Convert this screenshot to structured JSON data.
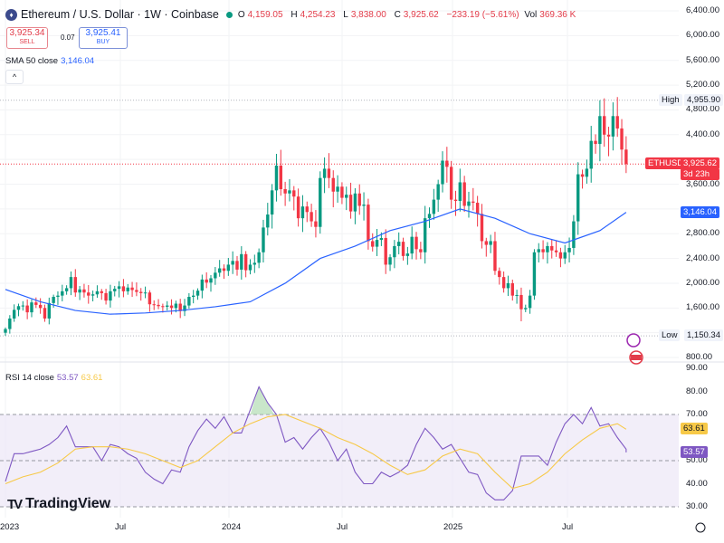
{
  "header": {
    "symbol_icon": "ethereum-icon",
    "title": "Ethereum / U.S. Dollar · 1W · Coinbase",
    "market_status": "open",
    "open_label": "O",
    "open": "4,159.05",
    "high_label": "H",
    "high": "4,254.23",
    "low_label": "L",
    "low": "3,838.00",
    "close_label": "C",
    "close": "3,925.62",
    "change": "−233.19 (−5.61%)",
    "vol_label": "Vol",
    "vol": "369.36 K"
  },
  "trade": {
    "sell_price": "3,925.34",
    "sell_label": "SELL",
    "spread": "0.07",
    "buy_price": "3,925.41",
    "buy_label": "BUY"
  },
  "sma": {
    "label": "SMA 50 close",
    "value": "3,146.04"
  },
  "rsi": {
    "label": "RSI 14 close",
    "value": "53.57",
    "ma_value": "63.61"
  },
  "price_axis": {
    "ticks": [
      "6,400.00",
      "6,000.00",
      "5,600.00",
      "5,200.00",
      "4,800.00",
      "4,400.00",
      "3,600.00",
      "2,800.00",
      "2,400.00",
      "2,000.00",
      "1,600.00",
      "800.00"
    ],
    "high_label": "High",
    "high_value": "4,955.90",
    "low_label": "Low",
    "low_value": "1,150.34",
    "symbol_tag": "ETHUSD",
    "last_price": "3,925.62",
    "countdown": "3d 23h",
    "sma_tag": "3,146.04"
  },
  "rsi_axis": {
    "ticks": [
      "90.00",
      "80.00",
      "70.00",
      "50.00",
      "40.00",
      "30.00"
    ],
    "rsi_tag": "53.57",
    "ma_tag": "63.61"
  },
  "time_axis": [
    "2023",
    "Jul",
    "2024",
    "Jul",
    "2025",
    "Jul"
  ],
  "branding": {
    "logo_mark": "17",
    "name": "TradingView"
  },
  "colors": {
    "up": "#089981",
    "down": "#f23645",
    "sma": "#2962ff",
    "rsi": "#7e57c2",
    "rsi_ma": "#f7c948",
    "rsi_band": "#ede7f6"
  },
  "chart_data": {
    "type": "candlestick",
    "interval": "1W",
    "price_range": [
      800,
      6400
    ],
    "rsi_range": [
      30,
      90
    ],
    "rsi_levels": [
      70,
      50,
      30
    ],
    "closes": [
      1260,
      1430,
      1570,
      1630,
      1640,
      1530,
      1690,
      1650,
      1600,
      1430,
      1680,
      1780,
      1800,
      1870,
      1920,
      2100,
      1850,
      1900,
      1850,
      1800,
      1820,
      1870,
      1840,
      1720,
      1870,
      1910,
      1950,
      1870,
      1930,
      1890,
      1860,
      1840,
      1850,
      1660,
      1650,
      1630,
      1620,
      1640,
      1600,
      1670,
      1550,
      1640,
      1780,
      1800,
      1880,
      2060,
      2010,
      2080,
      2170,
      2240,
      2200,
      2300,
      2360,
      2220,
      2470,
      2210,
      2300,
      2330,
      2500,
      2900,
      3110,
      3500,
      3900,
      3520,
      3450,
      3500,
      3400,
      3050,
      3240,
      3150,
      3000,
      2910,
      3700,
      3850,
      3700,
      3480,
      3560,
      3380,
      3430,
      3160,
      3450,
      3250,
      3270,
      2680,
      2590,
      2700,
      2730,
      2300,
      2420,
      2600,
      2670,
      2440,
      2480,
      2750,
      2550,
      2500,
      3050,
      3120,
      3350,
      3600,
      3980,
      3880,
      3350,
      3330,
      3630,
      3250,
      3320,
      3300,
      3120,
      2680,
      2620,
      2680,
      2200,
      2100,
      1920,
      2000,
      1800,
      1810,
      1580,
      1600,
      1800,
      2500,
      2550,
      2500,
      2600,
      2530,
      2500,
      2400,
      2500,
      2570,
      3000,
      3760,
      3720,
      3850,
      4300,
      4250,
      4700,
      4400,
      4370,
      4700,
      4500,
      4159.05,
      3925.62
    ],
    "sma50_every_8w": [
      1900,
      1700,
      1560,
      1500,
      1520,
      1560,
      1620,
      1700,
      2000,
      2400,
      2600,
      2850,
      3000,
      3200,
      3050,
      2800,
      2650,
      2850,
      3146.04
    ],
    "rsi_every_2w": [
      41,
      53,
      53,
      54,
      55,
      57,
      60,
      65,
      56,
      56,
      56,
      50,
      57,
      56,
      53,
      51,
      45,
      42,
      40,
      46,
      45,
      56,
      63,
      68,
      64,
      69,
      62,
      62,
      72,
      82,
      75,
      70,
      58,
      60,
      55,
      60,
      64,
      58,
      50,
      55,
      45,
      40,
      40,
      45,
      43,
      45,
      48,
      57,
      64,
      60,
      55,
      57,
      51,
      45,
      44,
      36,
      33,
      33,
      37,
      52,
      52,
      52,
      48,
      58,
      66,
      70,
      66,
      73,
      65,
      66,
      60,
      55,
      53.57
    ],
    "rsi_ma_every_4w": [
      40,
      43,
      45,
      49,
      55,
      56,
      56,
      55,
      53,
      50,
      47,
      50,
      56,
      62,
      66,
      69,
      70,
      67,
      64,
      60,
      57,
      53,
      48,
      44,
      46,
      52,
      55,
      53,
      45,
      38,
      40,
      45,
      53,
      59,
      64,
      66,
      63.61
    ]
  }
}
